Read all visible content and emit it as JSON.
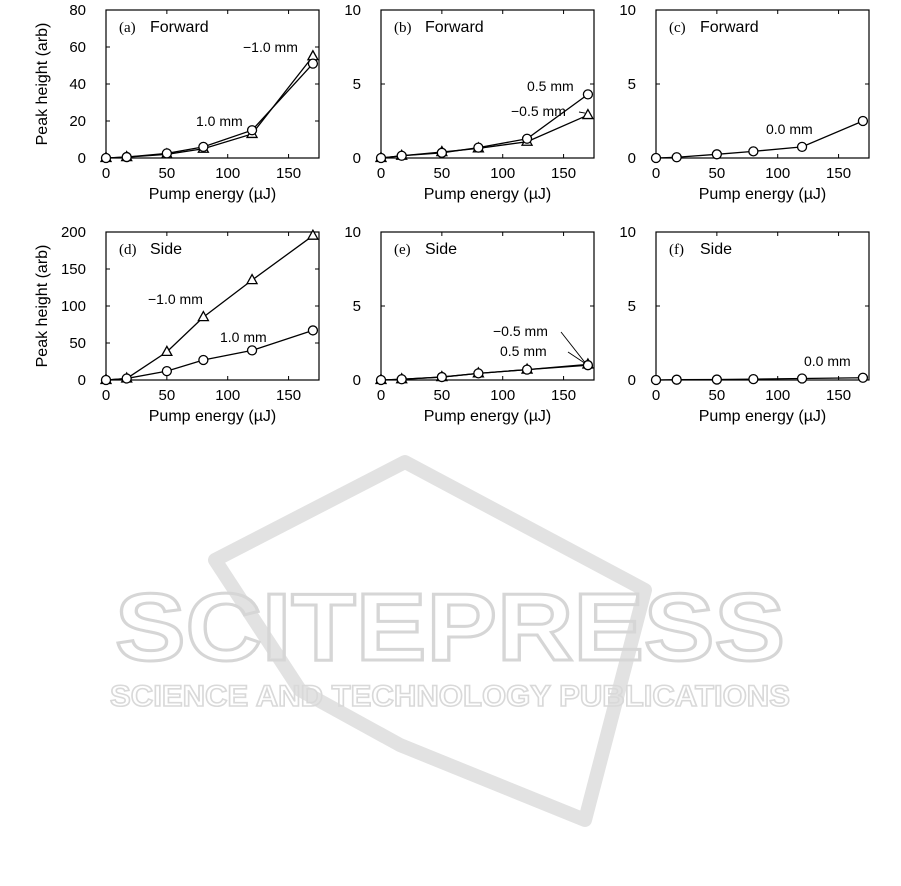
{
  "watermark": {
    "line1": "SCITEPRESS",
    "line2": "SCIENCE AND TECHNOLOGY PUBLICATIONS"
  },
  "chart_data": [
    {
      "id": "a",
      "type": "line",
      "tag": "(a)",
      "subtitle": "Forward",
      "xlabel": "Pump energy (µJ)",
      "ylabel": "Peak height (arb)",
      "xlim": [
        0,
        175
      ],
      "ylim": [
        0,
        80
      ],
      "xticks": [
        0,
        50,
        100,
        150
      ],
      "yticks": [
        0,
        20,
        40,
        60,
        80
      ],
      "series": [
        {
          "marker": "triangle",
          "x": [
            0,
            17,
            50,
            80,
            120,
            170
          ],
          "y": [
            0,
            0.5,
            2,
            5,
            13,
            55
          ]
        },
        {
          "marker": "circle",
          "x": [
            0,
            17,
            50,
            80,
            120,
            170
          ],
          "y": [
            0,
            0.5,
            2.5,
            6,
            15,
            51
          ]
        }
      ],
      "annotations": [
        {
          "text": "−1.0 mm",
          "series": 0
        },
        {
          "text": "1.0 mm",
          "series": 1
        }
      ]
    },
    {
      "id": "b",
      "type": "line",
      "tag": "(b)",
      "subtitle": "Forward",
      "xlabel": "Pump energy (µJ)",
      "ylabel": "",
      "xlim": [
        0,
        175
      ],
      "ylim": [
        0,
        10
      ],
      "xticks": [
        0,
        50,
        100,
        150
      ],
      "yticks": [
        0,
        5,
        10
      ],
      "series": [
        {
          "marker": "triangle",
          "x": [
            0,
            17,
            50,
            80,
            120,
            170
          ],
          "y": [
            0,
            0.15,
            0.4,
            0.65,
            1.1,
            2.9
          ]
        },
        {
          "marker": "circle",
          "x": [
            0,
            17,
            50,
            80,
            120,
            170
          ],
          "y": [
            0,
            0.15,
            0.35,
            0.7,
            1.3,
            4.3
          ]
        }
      ],
      "annotations": [
        {
          "text": "−0.5 mm",
          "series": 0
        },
        {
          "text": "0.5 mm",
          "series": 1
        }
      ]
    },
    {
      "id": "c",
      "type": "line",
      "tag": "(c)",
      "subtitle": "Forward",
      "xlabel": "Pump energy (µJ)",
      "ylabel": "",
      "xlim": [
        0,
        175
      ],
      "ylim": [
        0,
        10
      ],
      "xticks": [
        0,
        50,
        100,
        150
      ],
      "yticks": [
        0,
        5,
        10
      ],
      "series": [
        {
          "marker": "circle",
          "x": [
            0,
            17,
            50,
            80,
            120,
            170
          ],
          "y": [
            0,
            0.05,
            0.25,
            0.45,
            0.75,
            2.5
          ]
        }
      ],
      "annotations": [
        {
          "text": "0.0 mm",
          "series": 0
        }
      ]
    },
    {
      "id": "d",
      "type": "line",
      "tag": "(d)",
      "subtitle": "Side",
      "xlabel": "Pump energy (µJ)",
      "ylabel": "Peak height (arb)",
      "xlim": [
        0,
        175
      ],
      "ylim": [
        0,
        200
      ],
      "xticks": [
        0,
        50,
        100,
        150
      ],
      "yticks": [
        0,
        50,
        100,
        150,
        200
      ],
      "series": [
        {
          "marker": "triangle",
          "x": [
            0,
            17,
            50,
            80,
            120,
            170
          ],
          "y": [
            0,
            2,
            38,
            85,
            135,
            195
          ]
        },
        {
          "marker": "circle",
          "x": [
            0,
            17,
            50,
            80,
            120,
            170
          ],
          "y": [
            0,
            2,
            12,
            27,
            40,
            67
          ]
        }
      ],
      "annotations": [
        {
          "text": "−1.0 mm",
          "series": 0
        },
        {
          "text": "1.0 mm",
          "series": 1
        }
      ]
    },
    {
      "id": "e",
      "type": "line",
      "tag": "(e)",
      "subtitle": "Side",
      "xlabel": "Pump energy (µJ)",
      "ylabel": "",
      "xlim": [
        0,
        175
      ],
      "ylim": [
        0,
        10
      ],
      "xticks": [
        0,
        50,
        100,
        150
      ],
      "yticks": [
        0,
        5,
        10
      ],
      "series": [
        {
          "marker": "triangle",
          "x": [
            0,
            17,
            50,
            80,
            120,
            170
          ],
          "y": [
            0,
            0.05,
            0.2,
            0.45,
            0.7,
            1.05
          ]
        },
        {
          "marker": "circle",
          "x": [
            0,
            17,
            50,
            80,
            120,
            170
          ],
          "y": [
            0,
            0.05,
            0.2,
            0.45,
            0.7,
            1.0
          ]
        }
      ],
      "annotations": [
        {
          "text": "−0.5 mm",
          "series": 0
        },
        {
          "text": "0.5 mm",
          "series": 1
        }
      ]
    },
    {
      "id": "f",
      "type": "line",
      "tag": "(f)",
      "subtitle": "Side",
      "xlabel": "Pump energy (µJ)",
      "ylabel": "",
      "xlim": [
        0,
        175
      ],
      "ylim": [
        0,
        10
      ],
      "xticks": [
        0,
        50,
        100,
        150
      ],
      "yticks": [
        0,
        5,
        10
      ],
      "series": [
        {
          "marker": "circle",
          "x": [
            0,
            17,
            50,
            80,
            120,
            170
          ],
          "y": [
            0,
            0.02,
            0.03,
            0.06,
            0.1,
            0.15
          ]
        }
      ],
      "annotations": [
        {
          "text": "0.0 mm",
          "series": 0
        }
      ]
    }
  ]
}
